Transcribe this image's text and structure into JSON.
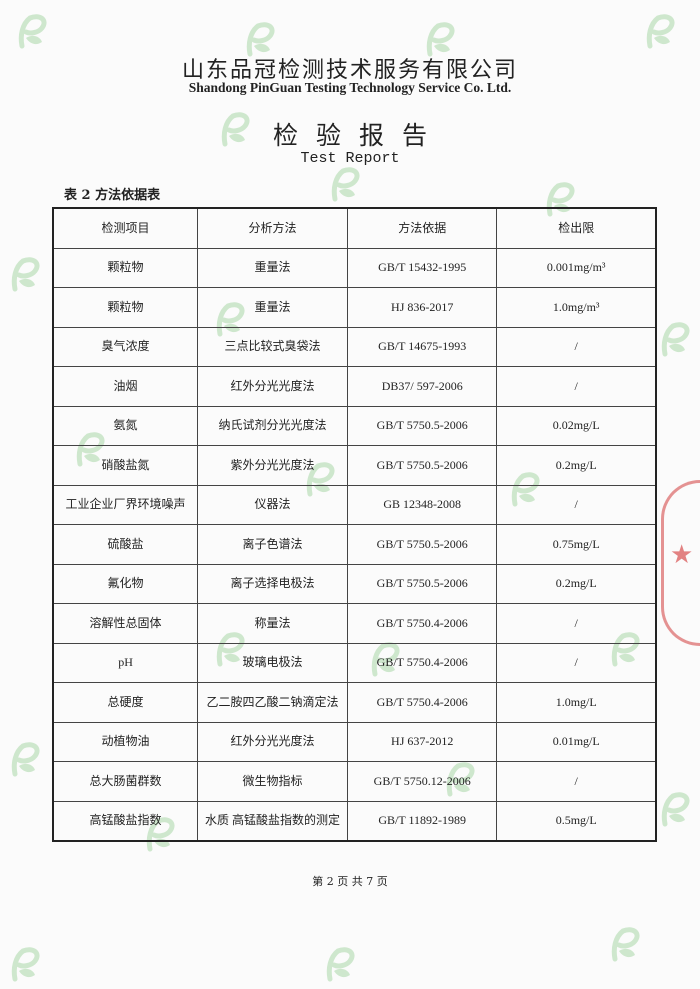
{
  "header": {
    "company_cn": "山东品冠检测技术服务有限公司",
    "company_en": "Shandong PinGuan Testing Technology Service Co. Ltd.",
    "title_cn": "检验报告",
    "title_en": "Test Report"
  },
  "table": {
    "caption": "表 2 方法依据表",
    "columns": [
      "检测项目",
      "分析方法",
      "方法依据",
      "检出限"
    ],
    "rows": [
      [
        "颗粒物",
        "重量法",
        "GB/T 15432-1995",
        "0.001mg/m³"
      ],
      [
        "颗粒物",
        "重量法",
        "HJ 836-2017",
        "1.0mg/m³"
      ],
      [
        "臭气浓度",
        "三点比较式臭袋法",
        "GB/T 14675-1993",
        "/"
      ],
      [
        "油烟",
        "红外分光光度法",
        "DB37/ 597-2006",
        "/"
      ],
      [
        "氨氮",
        "纳氏试剂分光光度法",
        "GB/T 5750.5-2006",
        "0.02mg/L"
      ],
      [
        "硝酸盐氮",
        "紫外分光光度法",
        "GB/T 5750.5-2006",
        "0.2mg/L"
      ],
      [
        "工业企业厂界环境噪声",
        "仪器法",
        "GB 12348-2008",
        "/"
      ],
      [
        "硫酸盐",
        "离子色谱法",
        "GB/T 5750.5-2006",
        "0.75mg/L"
      ],
      [
        "氟化物",
        "离子选择电极法",
        "GB/T 5750.5-2006",
        "0.2mg/L"
      ],
      [
        "溶解性总固体",
        "称量法",
        "GB/T 5750.4-2006",
        "/"
      ],
      [
        "pH",
        "玻璃电极法",
        "GB/T 5750.4-2006",
        "/"
      ],
      [
        "总硬度",
        "乙二胺四乙酸二钠滴定法",
        "GB/T 5750.4-2006",
        "1.0mg/L"
      ],
      [
        "动植物油",
        "红外分光光度法",
        "HJ 637-2012",
        "0.01mg/L"
      ],
      [
        "总大肠菌群数",
        "微生物指标",
        "GB/T 5750.12-2006",
        "/"
      ],
      [
        "高锰酸盐指数",
        "水质 高锰酸盐指数的测定",
        "GB/T 11892-1989",
        "0.5mg/L"
      ]
    ]
  },
  "footer": {
    "page": "第 2 页 共 7 页"
  },
  "colors": {
    "watermark": "#7cc47a",
    "stamp": "#d23c3c"
  },
  "icons": {
    "watermark": "pinguan-logo-icon"
  }
}
